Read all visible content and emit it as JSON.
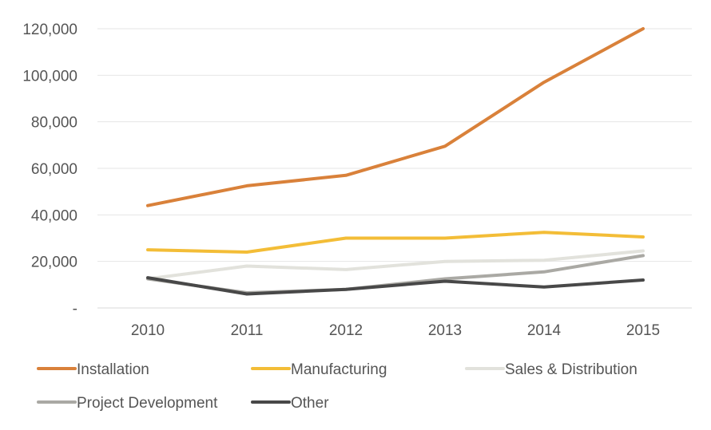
{
  "chart_data": {
    "type": "line",
    "title": "",
    "xlabel": "",
    "ylabel": "",
    "categories": [
      "2010",
      "2011",
      "2012",
      "2013",
      "2014",
      "2015"
    ],
    "ylim": [
      0,
      120000
    ],
    "yticks": [
      0,
      20000,
      40000,
      60000,
      80000,
      100000,
      120000
    ],
    "ytick_labels": [
      "-",
      "20,000",
      "40,000",
      "60,000",
      "80,000",
      "100,000",
      "120,000"
    ],
    "grid": "horizontal",
    "legend_position": "bottom",
    "series": [
      {
        "name": "Installation",
        "color": "#d9813a",
        "values": [
          44000,
          52500,
          57000,
          69500,
          97000,
          120000
        ]
      },
      {
        "name": "Manufacturing",
        "color": "#f3bd37",
        "values": [
          25000,
          24000,
          30000,
          30000,
          32500,
          30500
        ]
      },
      {
        "name": "Sales & Distribution",
        "color": "#e2e2dc",
        "values": [
          12500,
          18000,
          16500,
          20000,
          20500,
          24500
        ]
      },
      {
        "name": "Project Development",
        "color": "#aaa9a4",
        "values": [
          12500,
          6500,
          8000,
          12500,
          15500,
          22500
        ]
      },
      {
        "name": "Other",
        "color": "#484848",
        "values": [
          13000,
          6000,
          8000,
          11500,
          9000,
          12000
        ]
      }
    ]
  }
}
